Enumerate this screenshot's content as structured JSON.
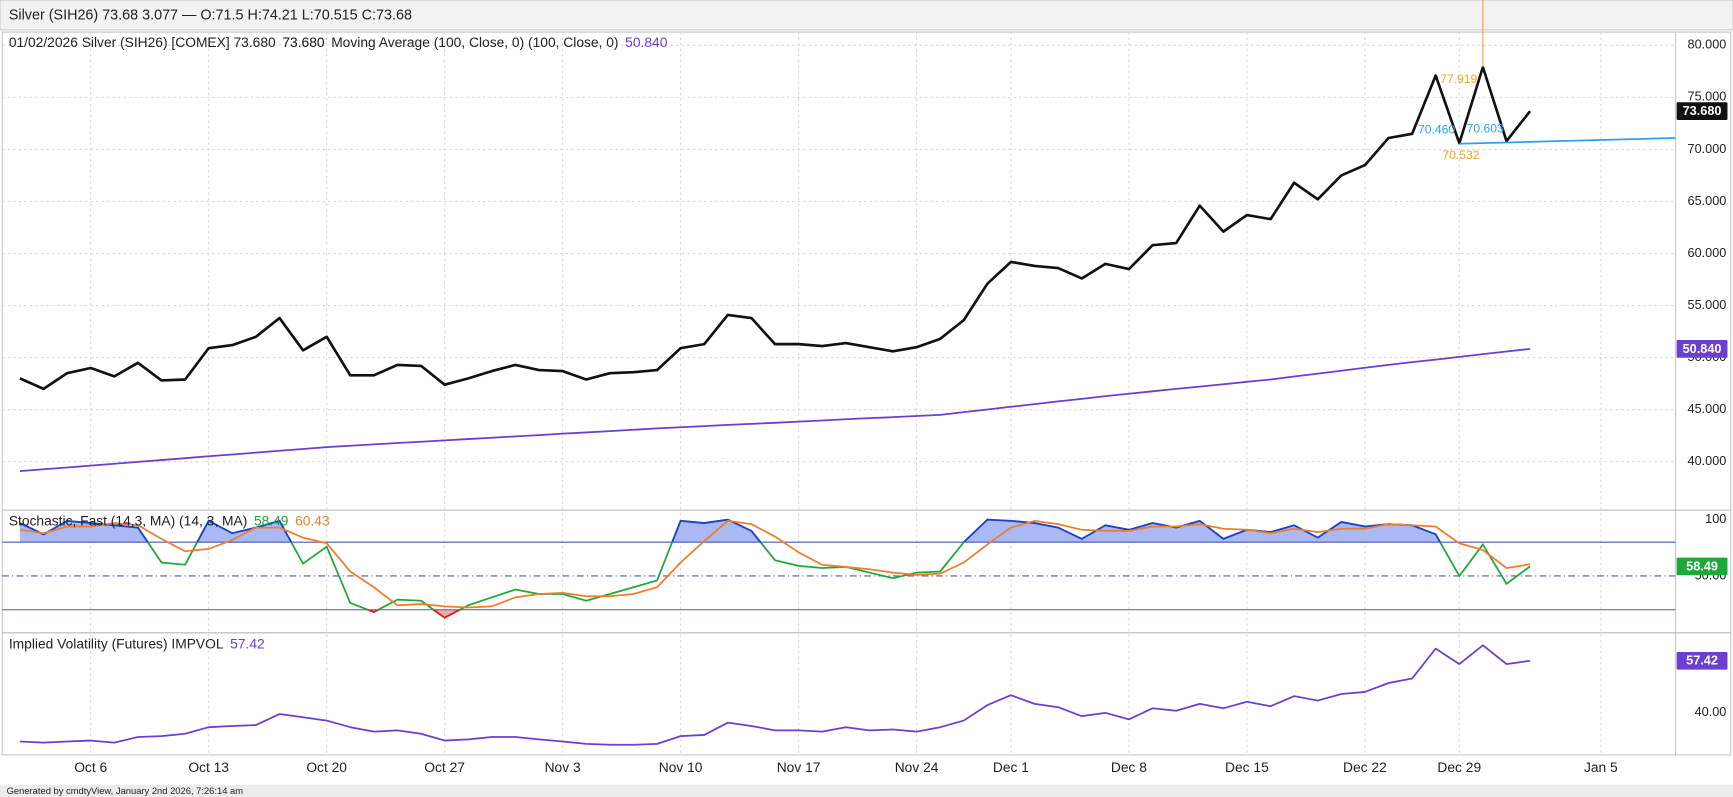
{
  "header": "Silver (SIH26) 73.68 3.077 — O:71.5 H:74.21 L:70.515 C:73.68",
  "footer": "Generated by cmdtyView, January 2nd 2026, 7:26:14 am",
  "chart_data": [
    {
      "type": "line",
      "title": "01/02/2026 Silver (SIH26) [COMEX] 73.680",
      "ylim": [
        35.4,
        81.27
      ],
      "yticks": [
        {
          "value": 40,
          "label": "40.000"
        },
        {
          "value": 45,
          "label": "45.000"
        },
        {
          "value": 50,
          "label": "50.000"
        },
        {
          "value": 55,
          "label": "55.000"
        },
        {
          "value": 60,
          "label": "60.000"
        },
        {
          "value": 65,
          "label": "65.000"
        },
        {
          "value": 70,
          "label": "70.000"
        },
        {
          "value": 75,
          "label": "75.000"
        },
        {
          "value": 80,
          "label": "80.000"
        }
      ],
      "grid": true,
      "series": [
        {
          "color": "#111111",
          "last_label": "73.680",
          "values": [
            48.0,
            47.0,
            48.5,
            49.0,
            48.2,
            49.5,
            47.8,
            47.9,
            50.9,
            51.2,
            52.0,
            53.8,
            50.7,
            52.0,
            48.3,
            48.3,
            49.3,
            49.2,
            47.4,
            48.0,
            48.7,
            49.3,
            48.8,
            48.7,
            47.9,
            48.5,
            48.6,
            48.8,
            50.9,
            51.3,
            54.1,
            53.8,
            51.3,
            51.3,
            51.1,
            51.4,
            51.0,
            50.6,
            51.0,
            51.8,
            53.6,
            57.1,
            59.2,
            58.8,
            58.6,
            57.6,
            59.0,
            58.5,
            60.8,
            61.0,
            64.6,
            62.1,
            63.7,
            63.3,
            66.8,
            65.2,
            67.5,
            68.5,
            71.1,
            71.5,
            77.1,
            70.6,
            77.9,
            70.8,
            73.68,
            null,
            null,
            null
          ]
        },
        {
          "name": "Moving Average (100, Close, 0) (100, Close, 0)",
          "color": "#6b3fd0",
          "last_label": "50.840",
          "values": [
            39.1,
            39.28,
            39.45,
            39.63,
            39.81,
            39.99,
            40.16,
            40.34,
            40.52,
            40.69,
            40.87,
            41.05,
            41.22,
            41.4,
            41.53,
            41.66,
            41.79,
            41.92,
            42.05,
            42.17,
            42.3,
            42.43,
            42.56,
            42.69,
            42.81,
            42.94,
            43.07,
            43.2,
            43.31,
            43.42,
            43.53,
            43.63,
            43.74,
            43.85,
            43.96,
            44.07,
            44.18,
            44.28,
            44.39,
            44.5,
            44.76,
            45.01,
            45.27,
            45.53,
            45.79,
            46.04,
            46.3,
            46.53,
            46.76,
            46.99,
            47.21,
            47.44,
            47.67,
            47.9,
            48.18,
            48.46,
            48.74,
            49.02,
            49.3,
            49.56,
            49.81,
            50.07,
            50.33,
            50.58,
            50.84,
            null,
            null,
            null
          ]
        }
      ],
      "trendline": {
        "color": "#2f9ff0",
        "values": [
          70.55,
          71.1
        ]
      },
      "annotations": [
        {
          "text": "77.919",
          "color": "#f2a420"
        },
        {
          "text": "70.460",
          "color": "#2f9ff0"
        },
        {
          "text": "70.603",
          "color": "#2f9ff0"
        },
        {
          "text": "70.532",
          "color": "#f2a420"
        }
      ]
    },
    {
      "type": "stochastic",
      "title": "Stochastic, Fast (14,3, MA)  (14, 3, MA)",
      "ylim": [
        0,
        108
      ],
      "yticks": [
        {
          "value": 50,
          "label": "50.00"
        },
        100
      ],
      "levels": [
        20,
        50,
        80
      ],
      "overbought_color": "#1f3fd8",
      "overbought_fill": "#aab8f4",
      "oversold_color": "#e02020",
      "oversold_fill": "#f4a9a9",
      "series": [
        {
          "color": "#1fa83a",
          "last_label": "58.49",
          "values": [
            97,
            87,
            99,
            97,
            95,
            93,
            62,
            60,
            99,
            88,
            93,
            99,
            61,
            76,
            26,
            18,
            29,
            28,
            13,
            24,
            31,
            38,
            34,
            34,
            28,
            34,
            40,
            46,
            99,
            97,
            100,
            90,
            64,
            59,
            57,
            58,
            53,
            48,
            53,
            54,
            80,
            100,
            99,
            97,
            93,
            83,
            95,
            91,
            97,
            93,
            99,
            83,
            91,
            89,
            95,
            84,
            98,
            94,
            96,
            95,
            87,
            50,
            78,
            43,
            58.49,
            null,
            null,
            null
          ]
        },
        {
          "color": "#f07d2a",
          "last_label": "60.43",
          "values": [
            91,
            88,
            94,
            94,
            97,
            95,
            83,
            72,
            74,
            82,
            93,
            93,
            84,
            79,
            54,
            40,
            24,
            25,
            23,
            22,
            23,
            31,
            34,
            35,
            32,
            32,
            34,
            40,
            62,
            81,
            99,
            96,
            85,
            71,
            60,
            58,
            56,
            53,
            51,
            52,
            62,
            78,
            93,
            99,
            96,
            91,
            90,
            90,
            94,
            94,
            96,
            92,
            91,
            88,
            92,
            89,
            92,
            92,
            96,
            95,
            94,
            79,
            73,
            57,
            60.43,
            null,
            null,
            null
          ]
        }
      ]
    },
    {
      "type": "line",
      "title": "Implied Volatility (Futures)  IMPVOL",
      "ylim": [
        25.9,
        66.6
      ],
      "yticks": [
        {
          "value": 40,
          "label": "40.00"
        }
      ],
      "categories": [
        null,
        null,
        null,
        "Oct 6",
        null,
        null,
        null,
        null,
        "Oct 13",
        null,
        null,
        null,
        null,
        "Oct 20",
        null,
        null,
        null,
        null,
        "Oct 27",
        null,
        null,
        null,
        null,
        "Nov 3",
        null,
        null,
        null,
        null,
        "Nov 10",
        null,
        null,
        null,
        null,
        "Nov 17",
        null,
        null,
        null,
        null,
        "Nov 24",
        null,
        null,
        null,
        "Dec 1",
        null,
        null,
        null,
        null,
        "Dec 8",
        null,
        null,
        null,
        null,
        "Dec 15",
        null,
        null,
        null,
        null,
        "Dec 22",
        null,
        null,
        null,
        "Dec 29",
        null,
        null,
        null,
        null,
        null,
        "Jan 5"
      ],
      "series": [
        {
          "color": "#6b3fd0",
          "last_label": "57.42",
          "values": [
            30.4,
            30.0,
            30.4,
            30.7,
            30.0,
            31.9,
            32.2,
            33.0,
            35.2,
            35.6,
            35.9,
            39.6,
            38.5,
            37.4,
            35.2,
            33.7,
            34.1,
            33.0,
            30.7,
            31.1,
            31.9,
            31.9,
            31.1,
            30.4,
            29.6,
            29.3,
            29.3,
            29.6,
            32.2,
            32.6,
            36.7,
            35.6,
            34.1,
            34.1,
            33.7,
            35.2,
            34.1,
            34.4,
            33.7,
            35.2,
            37.4,
            42.6,
            45.9,
            43.0,
            41.9,
            38.9,
            40.0,
            37.8,
            41.5,
            40.7,
            43.0,
            41.5,
            43.7,
            42.2,
            45.6,
            44.1,
            46.3,
            47.0,
            50.0,
            51.5,
            61.5,
            56.3,
            62.6,
            56.3,
            57.42,
            null,
            null,
            null
          ]
        }
      ]
    }
  ]
}
